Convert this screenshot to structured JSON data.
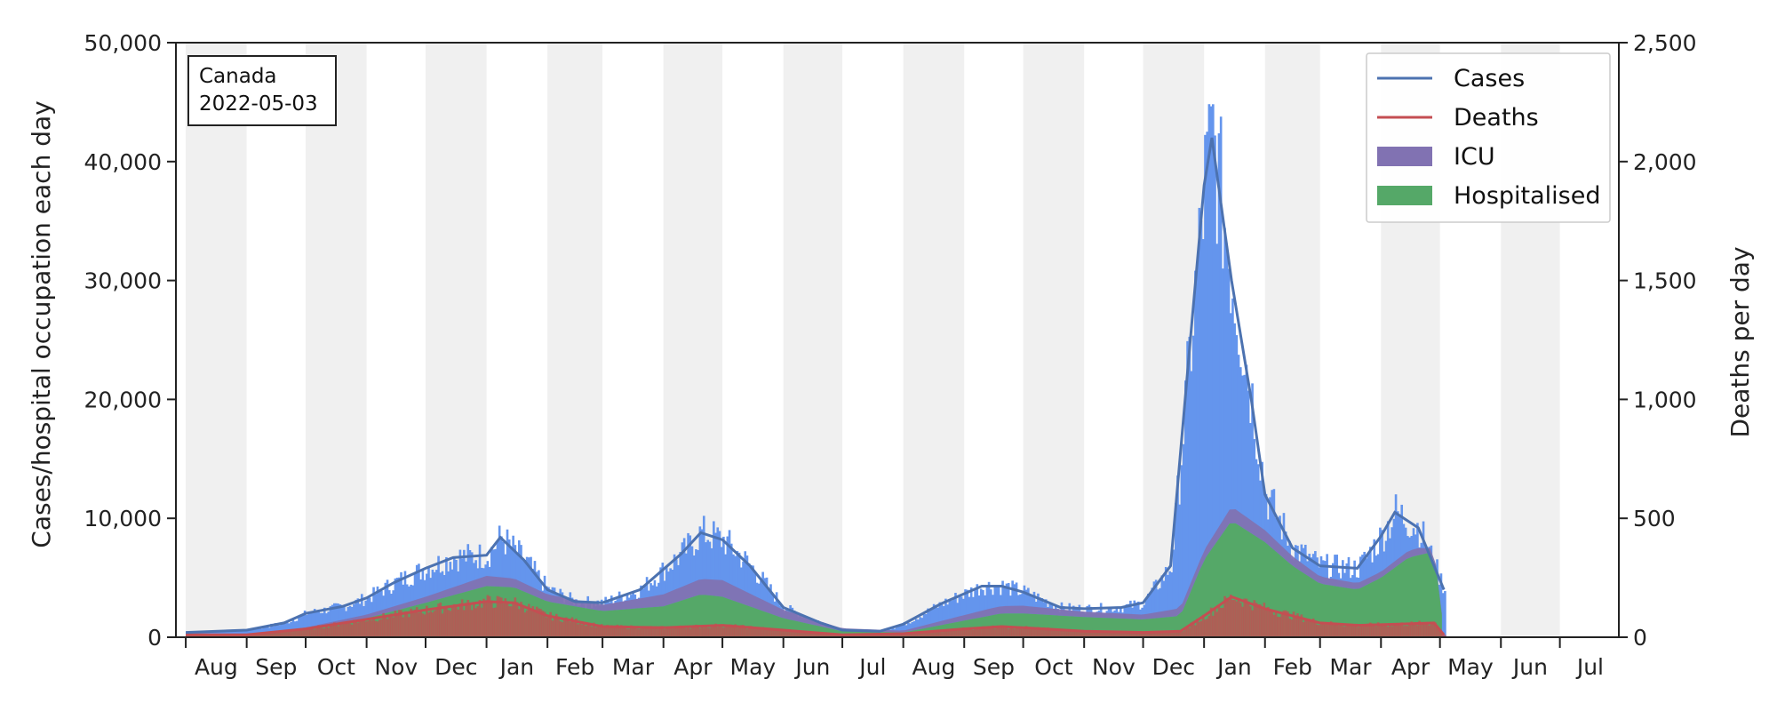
{
  "chart_data": {
    "type": "area",
    "annotation": {
      "line1": "Canada",
      "line2": "2022-05-03"
    },
    "ylabel_left": "Cases/hospital occupation each day",
    "ylabel_right": "Deaths per day",
    "ylim_left": [
      0,
      50000
    ],
    "ylim_right": [
      0,
      2500
    ],
    "yticks_left": [
      "0",
      "10,000",
      "20,000",
      "30,000",
      "40,000",
      "50,000"
    ],
    "yticks_right": [
      "0",
      "500",
      "1,000",
      "1,500",
      "2,000",
      "2,500"
    ],
    "x_start": "2020-07-27",
    "x_end": "2022-07-31",
    "month_ticks": [
      "2020-08-01",
      "2020-09-01",
      "2020-10-01",
      "2020-11-01",
      "2020-12-01",
      "2021-01-01",
      "2021-02-01",
      "2021-03-01",
      "2021-04-01",
      "2021-05-01",
      "2021-06-01",
      "2021-07-01",
      "2021-08-01",
      "2021-09-01",
      "2021-10-01",
      "2021-11-01",
      "2021-12-01",
      "2022-01-01",
      "2022-02-01",
      "2022-03-01",
      "2022-04-01",
      "2022-05-01",
      "2022-06-01",
      "2022-07-01",
      "2022-08-01"
    ],
    "month_labels": [
      "Aug",
      "Sep",
      "Oct",
      "Nov",
      "Dec",
      "Jan",
      "Feb",
      "Mar",
      "Apr",
      "May",
      "Jun",
      "Jul",
      "Aug",
      "Sep",
      "Oct",
      "Nov",
      "Dec",
      "Jan",
      "Feb",
      "Mar",
      "Apr",
      "May",
      "Jun",
      "Jul"
    ],
    "grid": false,
    "legend_position": "top-right",
    "legend": [
      {
        "label": "Cases",
        "kind": "line",
        "color": "#4c72b0"
      },
      {
        "label": "Deaths",
        "kind": "line",
        "color": "#c44e52"
      },
      {
        "label": "ICU",
        "kind": "patch",
        "color": "#8172b2"
      },
      {
        "label": "Hospitalised",
        "kind": "patch",
        "color": "#55a868"
      }
    ],
    "colors": {
      "cases_bars": "#6495ed",
      "cases_line": "#4c72b0",
      "deaths": "#c44e52",
      "icu": "#8172b2",
      "hospitalised": "#55a868",
      "shade": "#f0f0f0"
    },
    "series": [
      {
        "name": "Cases",
        "axis": "left",
        "points": [
          [
            "2020-08-01",
            400
          ],
          [
            "2020-09-01",
            600
          ],
          [
            "2020-09-20",
            1200
          ],
          [
            "2020-10-01",
            2000
          ],
          [
            "2020-10-20",
            2600
          ],
          [
            "2020-11-01",
            3300
          ],
          [
            "2020-11-15",
            4600
          ],
          [
            "2020-12-01",
            5800
          ],
          [
            "2020-12-15",
            6700
          ],
          [
            "2021-01-01",
            6900
          ],
          [
            "2021-01-08",
            8400
          ],
          [
            "2021-01-20",
            6500
          ],
          [
            "2021-02-01",
            4000
          ],
          [
            "2021-02-15",
            3000
          ],
          [
            "2021-03-01",
            2900
          ],
          [
            "2021-03-20",
            4000
          ],
          [
            "2021-04-10",
            7000
          ],
          [
            "2021-04-20",
            8800
          ],
          [
            "2021-05-01",
            8200
          ],
          [
            "2021-05-15",
            6000
          ],
          [
            "2021-06-01",
            2500
          ],
          [
            "2021-06-20",
            1200
          ],
          [
            "2021-07-01",
            600
          ],
          [
            "2021-07-20",
            500
          ],
          [
            "2021-08-01",
            1100
          ],
          [
            "2021-08-20",
            2800
          ],
          [
            "2021-09-10",
            4300
          ],
          [
            "2021-09-20",
            4300
          ],
          [
            "2021-10-01",
            3800
          ],
          [
            "2021-10-20",
            2500
          ],
          [
            "2021-11-01",
            2400
          ],
          [
            "2021-11-20",
            2500
          ],
          [
            "2021-12-01",
            2900
          ],
          [
            "2021-12-15",
            6000
          ],
          [
            "2021-12-25",
            25000
          ],
          [
            "2022-01-01",
            38000
          ],
          [
            "2022-01-05",
            42000
          ],
          [
            "2022-01-15",
            30000
          ],
          [
            "2022-01-25",
            20000
          ],
          [
            "2022-02-01",
            12000
          ],
          [
            "2022-02-15",
            7500
          ],
          [
            "2022-03-01",
            6000
          ],
          [
            "2022-03-20",
            5800
          ],
          [
            "2022-04-01",
            8500
          ],
          [
            "2022-04-08",
            10500
          ],
          [
            "2022-04-20",
            9200
          ],
          [
            "2022-05-03",
            4000
          ]
        ]
      },
      {
        "name": "Hospitalised",
        "axis": "left",
        "points": [
          [
            "2020-08-01",
            100
          ],
          [
            "2020-09-01",
            150
          ],
          [
            "2020-10-01",
            700
          ],
          [
            "2020-11-01",
            1600
          ],
          [
            "2020-12-01",
            2900
          ],
          [
            "2021-01-01",
            4300
          ],
          [
            "2021-01-15",
            4200
          ],
          [
            "2021-02-01",
            3000
          ],
          [
            "2021-03-01",
            2200
          ],
          [
            "2021-04-01",
            2600
          ],
          [
            "2021-04-20",
            3600
          ],
          [
            "2021-05-01",
            3400
          ],
          [
            "2021-06-01",
            1600
          ],
          [
            "2021-07-01",
            500
          ],
          [
            "2021-08-01",
            400
          ],
          [
            "2021-09-01",
            1400
          ],
          [
            "2021-09-20",
            2000
          ],
          [
            "2021-10-01",
            2000
          ],
          [
            "2021-11-01",
            1700
          ],
          [
            "2021-12-01",
            1500
          ],
          [
            "2021-12-20",
            1800
          ],
          [
            "2022-01-01",
            6500
          ],
          [
            "2022-01-15",
            9800
          ],
          [
            "2022-02-01",
            8000
          ],
          [
            "2022-02-15",
            6000
          ],
          [
            "2022-03-01",
            4500
          ],
          [
            "2022-03-20",
            4000
          ],
          [
            "2022-04-01",
            5000
          ],
          [
            "2022-04-15",
            6700
          ],
          [
            "2022-04-28",
            7200
          ],
          [
            "2022-05-03",
            500
          ]
        ]
      },
      {
        "name": "ICU",
        "axis": "left",
        "points": [
          [
            "2020-08-01",
            0
          ],
          [
            "2020-10-01",
            120
          ],
          [
            "2020-11-01",
            300
          ],
          [
            "2020-12-01",
            500
          ],
          [
            "2021-01-01",
            860
          ],
          [
            "2021-02-01",
            600
          ],
          [
            "2021-03-01",
            520
          ],
          [
            "2021-04-20",
            1300
          ],
          [
            "2021-05-01",
            1400
          ],
          [
            "2021-06-01",
            700
          ],
          [
            "2021-07-01",
            250
          ],
          [
            "2021-08-01",
            150
          ],
          [
            "2021-09-15",
            600
          ],
          [
            "2021-10-01",
            650
          ],
          [
            "2021-11-01",
            450
          ],
          [
            "2021-12-01",
            400
          ],
          [
            "2022-01-01",
            800
          ],
          [
            "2022-01-15",
            1200
          ],
          [
            "2022-02-01",
            1000
          ],
          [
            "2022-03-01",
            600
          ],
          [
            "2022-04-01",
            500
          ],
          [
            "2022-04-20",
            600
          ],
          [
            "2022-05-03",
            100
          ]
        ]
      },
      {
        "name": "Deaths",
        "axis": "right",
        "points": [
          [
            "2020-08-01",
            10
          ],
          [
            "2020-09-01",
            10
          ],
          [
            "2020-10-01",
            35
          ],
          [
            "2020-11-01",
            75
          ],
          [
            "2020-12-01",
            115
          ],
          [
            "2021-01-01",
            150
          ],
          [
            "2021-01-15",
            145
          ],
          [
            "2021-02-01",
            90
          ],
          [
            "2021-03-01",
            45
          ],
          [
            "2021-04-01",
            40
          ],
          [
            "2021-05-01",
            50
          ],
          [
            "2021-06-01",
            30
          ],
          [
            "2021-07-01",
            10
          ],
          [
            "2021-08-01",
            15
          ],
          [
            "2021-09-01",
            35
          ],
          [
            "2021-09-20",
            45
          ],
          [
            "2021-10-01",
            40
          ],
          [
            "2021-11-01",
            25
          ],
          [
            "2021-12-01",
            20
          ],
          [
            "2021-12-20",
            25
          ],
          [
            "2022-01-01",
            90
          ],
          [
            "2022-01-15",
            170
          ],
          [
            "2022-02-01",
            120
          ],
          [
            "2022-02-15",
            90
          ],
          [
            "2022-03-01",
            60
          ],
          [
            "2022-03-20",
            50
          ],
          [
            "2022-04-10",
            55
          ],
          [
            "2022-04-28",
            60
          ],
          [
            "2022-05-03",
            10
          ]
        ]
      }
    ]
  }
}
